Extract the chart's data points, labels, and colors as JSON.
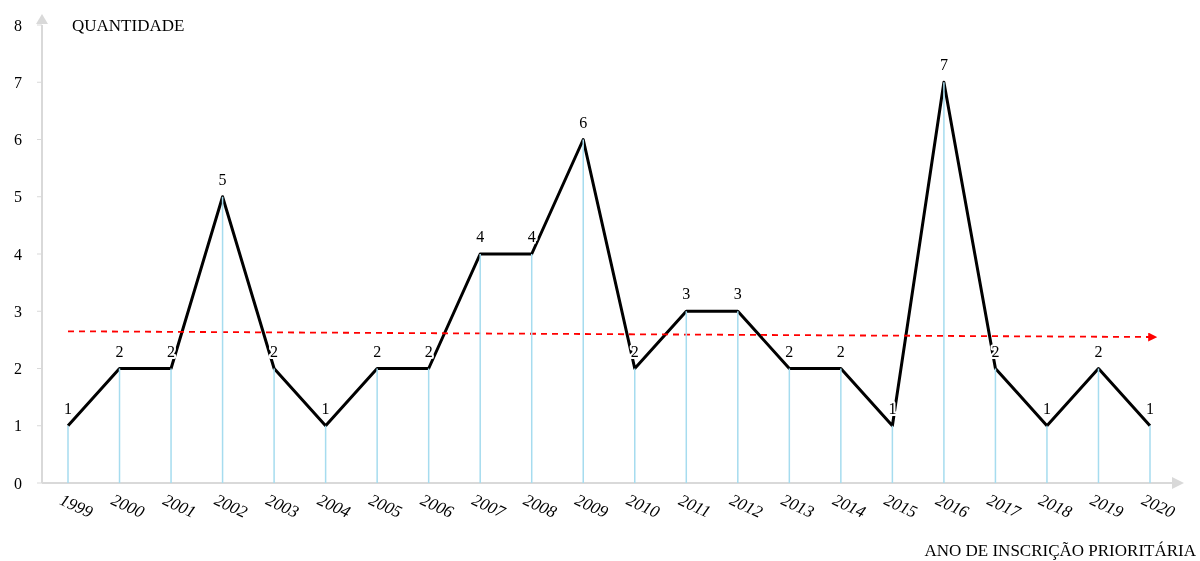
{
  "chart_data": {
    "type": "line",
    "ylabel": "QUANTIDADE",
    "xlabel": "ANO DE INSCRIÇÃO PRIORITÁRIA",
    "categories": [
      "1999",
      "2000",
      "2001",
      "2002",
      "2003",
      "2004",
      "2005",
      "2006",
      "2007",
      "2008",
      "2009",
      "2010",
      "2011",
      "2012",
      "2013",
      "2014",
      "2015",
      "2016",
      "2017",
      "2018",
      "2019",
      "2020"
    ],
    "ylim": [
      0,
      8
    ],
    "yticks": [
      0,
      1,
      2,
      3,
      4,
      5,
      6,
      7,
      8
    ],
    "marker": "none",
    "grid": false,
    "series": [
      {
        "type": "bar",
        "color": "#a6dcef",
        "values": [
          1,
          2,
          2,
          5,
          2,
          1,
          2,
          2,
          4,
          4,
          6,
          2,
          3,
          3,
          2,
          2,
          1,
          7,
          2,
          1,
          2,
          1
        ]
      },
      {
        "color": "#000000",
        "line_style": "solid",
        "values": [
          1,
          2,
          2,
          5,
          2,
          1,
          2,
          2,
          4,
          4,
          6,
          2,
          3,
          3,
          2,
          2,
          1,
          7,
          2,
          1,
          2,
          1
        ],
        "value_labels": [
          "1",
          "2",
          "2",
          "5",
          "2",
          "1",
          "2",
          "2",
          "4",
          "4",
          "6",
          "2",
          "3",
          "3",
          "2",
          "2",
          "1",
          "7",
          "2",
          "1",
          "2",
          "1"
        ]
      },
      {
        "type": "line",
        "color": "#ff0000",
        "line_style": "dashed",
        "values": [
          2.65,
          null,
          null,
          null,
          null,
          null,
          null,
          null,
          null,
          null,
          null,
          null,
          null,
          null,
          null,
          null,
          null,
          null,
          null,
          null,
          null,
          2.55
        ]
      }
    ]
  }
}
